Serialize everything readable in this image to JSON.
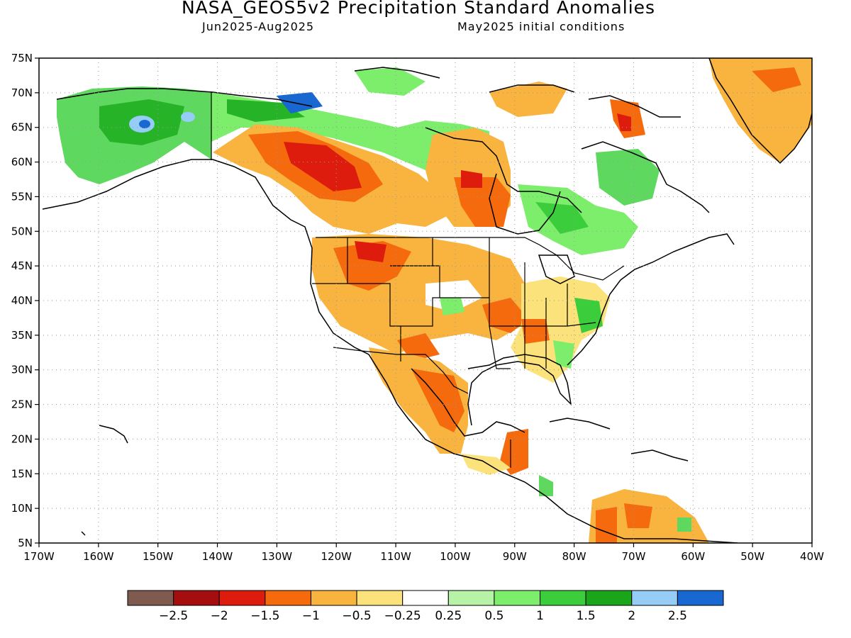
{
  "header": {
    "title": "NASA_GEOS5v2 Precipitation Standard Anomalies",
    "period": "Jun2025-Aug2025",
    "init": "May2025 initial conditions"
  },
  "map": {
    "lon_range": [
      -170,
      -40
    ],
    "lat_range": [
      5,
      75
    ],
    "lon_labels": [
      "170W",
      "160W",
      "150W",
      "140W",
      "130W",
      "120W",
      "110W",
      "100W",
      "90W",
      "80W",
      "70W",
      "60W",
      "50W",
      "40W"
    ],
    "lat_labels": [
      "5N",
      "10N",
      "15N",
      "20N",
      "25N",
      "30N",
      "35N",
      "40N",
      "45N",
      "50N",
      "55N",
      "60N",
      "65N",
      "70N",
      "75N"
    ],
    "gridlines": "dotted"
  },
  "colorbar": {
    "colors": [
      "#7f5a4e",
      "#a50e0e",
      "#dd1c0e",
      "#f46a0c",
      "#f9b33f",
      "#fbe27a",
      "#ffffff",
      "#b6f3a6",
      "#7ded6c",
      "#3ccd3c",
      "#1aa51a",
      "#96cdf6",
      "#1967d1"
    ],
    "labels": [
      "-2.5",
      "-2",
      "-1.5",
      "-1",
      "-0.5",
      "-0.25",
      "0.25",
      "0.5",
      "1",
      "1.5",
      "2",
      "2.5"
    ]
  }
}
